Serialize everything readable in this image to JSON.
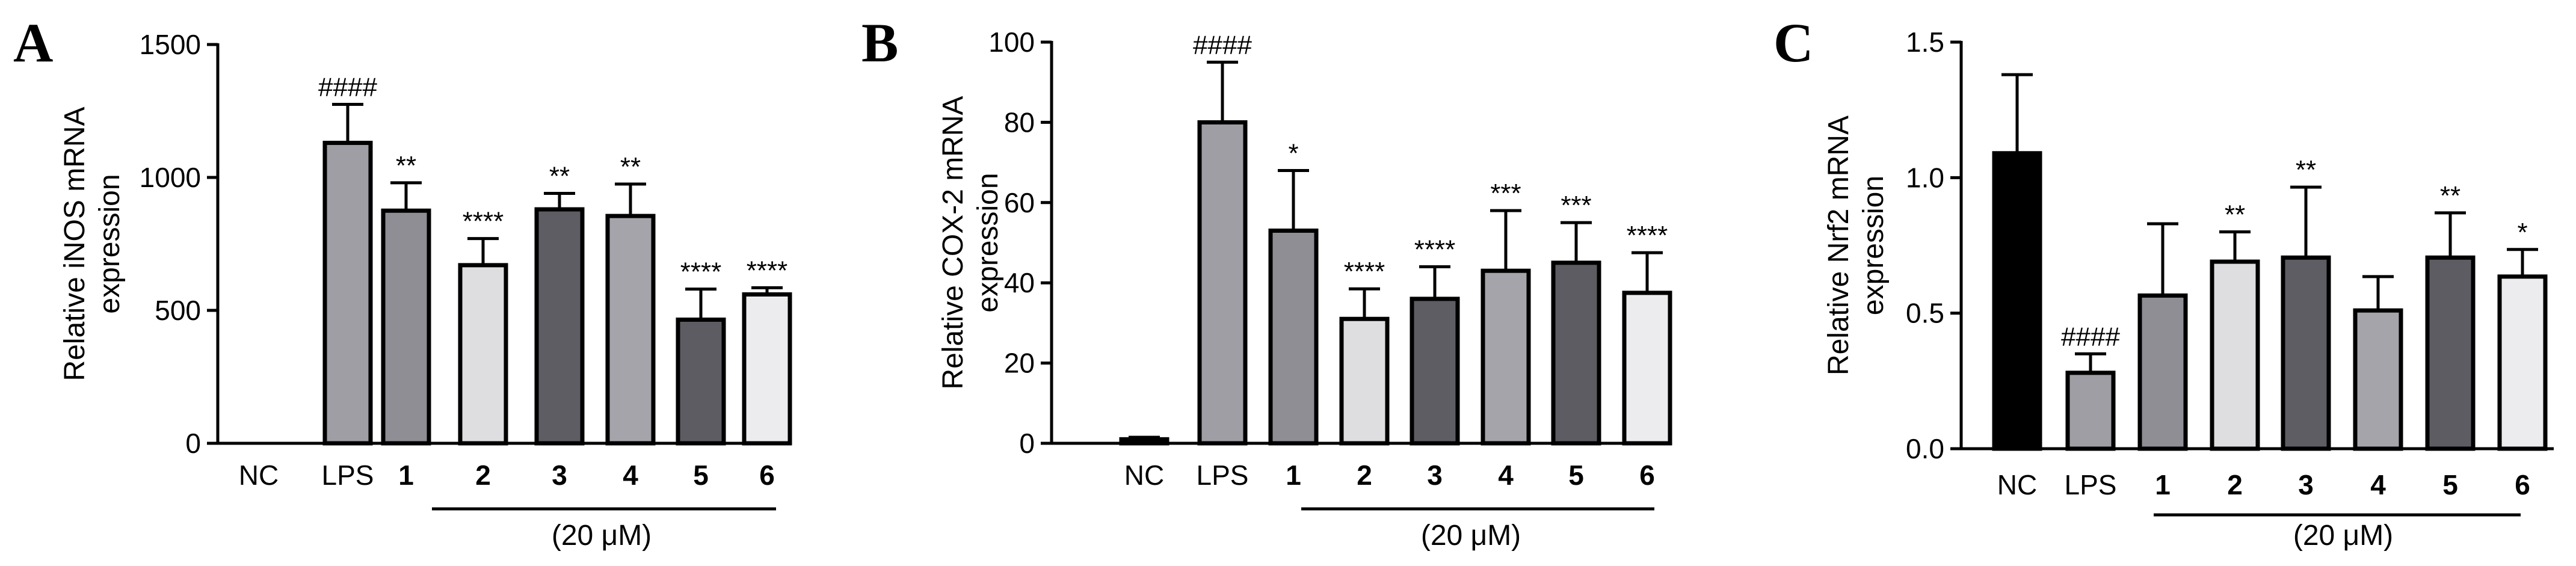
{
  "colors": {
    "nc": "#000000",
    "lps": "#9e9ea4",
    "c1": "#8e8e94",
    "c2": "#dedee0",
    "c3": "#5d5d63",
    "c4": "#a4a4aa",
    "c5": "#5c5c62",
    "c6": "#ececee"
  },
  "chart_data": [
    {
      "panel": "A",
      "type": "bar",
      "ylabel_lines": [
        "Relative iNOS mRNA",
        "expression"
      ],
      "ylim": [
        0,
        1500
      ],
      "yticks": [
        0,
        500,
        1000,
        1500
      ],
      "categories": [
        "NC",
        "LPS",
        "1",
        "2",
        "3",
        "4",
        "5",
        "6"
      ],
      "bold_categories": [
        "1",
        "2",
        "3",
        "4",
        "5",
        "6"
      ],
      "values": [
        0,
        1130,
        875,
        670,
        880,
        855,
        465,
        560
      ],
      "errors": [
        0,
        145,
        105,
        100,
        60,
        120,
        115,
        25
      ],
      "color_keys": [
        "nc",
        "lps",
        "c1",
        "c2",
        "c3",
        "c4",
        "c5",
        "c6"
      ],
      "significance": [
        "",
        "####",
        "**",
        "****",
        "**",
        "**",
        "****",
        "****"
      ],
      "condition_label": "(20 μM)"
    },
    {
      "panel": "B",
      "type": "bar",
      "ylabel_lines": [
        "Relative COX-2 mRNA",
        "expression"
      ],
      "ylim": [
        0,
        100
      ],
      "yticks": [
        0,
        20,
        40,
        60,
        80,
        100
      ],
      "categories": [
        "NC",
        "LPS",
        "1",
        "2",
        "3",
        "4",
        "5",
        "6"
      ],
      "bold_categories": [
        "1",
        "2",
        "3",
        "4",
        "5",
        "6"
      ],
      "values": [
        1,
        80,
        53,
        31,
        36,
        43,
        45,
        37.5
      ],
      "errors": [
        0.5,
        15,
        15,
        7.5,
        8,
        15,
        10,
        10
      ],
      "color_keys": [
        "nc",
        "lps",
        "c1",
        "c2",
        "c3",
        "c4",
        "c5",
        "c6"
      ],
      "significance": [
        "",
        "####",
        "*",
        "****",
        "****",
        "***",
        "***",
        "****"
      ],
      "condition_label": "(20 μM)"
    },
    {
      "panel": "C",
      "type": "bar",
      "ylabel_lines": [
        "Relative Nrf2 mRNA",
        "expression"
      ],
      "ylim": [
        0,
        1.5
      ],
      "yticks": [
        "0.0",
        "0.5",
        "1.0",
        "1.5"
      ],
      "categories": [
        "NC",
        "LPS",
        "1",
        "2",
        "3",
        "4",
        "5",
        "6"
      ],
      "bold_categories": [
        "1",
        "2",
        "3",
        "4",
        "5",
        "6"
      ],
      "values": [
        1.09,
        0.28,
        0.565,
        0.69,
        0.705,
        0.51,
        0.705,
        0.635
      ],
      "errors": [
        0.29,
        0.07,
        0.265,
        0.11,
        0.26,
        0.125,
        0.165,
        0.1
      ],
      "color_keys": [
        "nc",
        "lps",
        "c1",
        "c2",
        "c3",
        "c4",
        "c5",
        "c6"
      ],
      "significance": [
        "",
        "####",
        "",
        "**",
        "**",
        "",
        "**",
        "*"
      ],
      "condition_label": "(20 μM)"
    }
  ]
}
